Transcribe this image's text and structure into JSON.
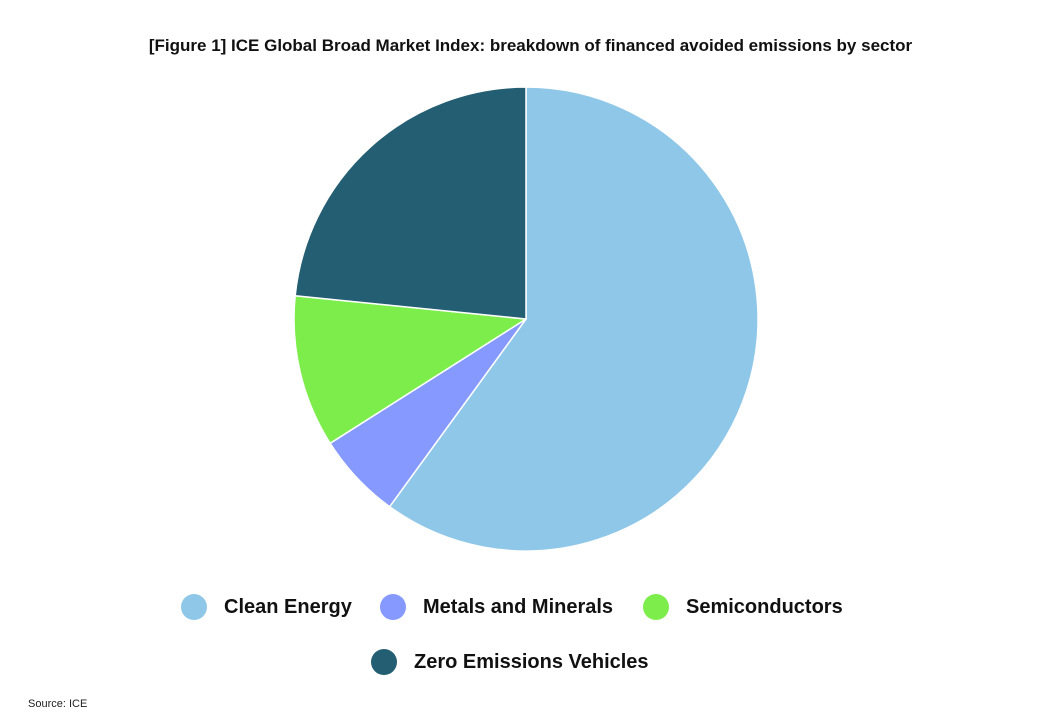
{
  "chart_data": {
    "type": "pie",
    "title": "[Figure 1] ICE Global Broad Market Index: breakdown of financed avoided emissions by sector",
    "legend_position": "bottom",
    "slices": [
      {
        "label": "Clean Energy",
        "value": 60.0,
        "color": "#8fc7e8"
      },
      {
        "label": "Metals and Minerals",
        "value": 6.0,
        "color": "#8599ff"
      },
      {
        "label": "Semiconductors",
        "value": 10.6,
        "color": "#7ded4c"
      },
      {
        "label": "Zero Emissions Vehicles",
        "value": 23.4,
        "color": "#235e72"
      }
    ]
  },
  "source_note": "Source: ICE"
}
